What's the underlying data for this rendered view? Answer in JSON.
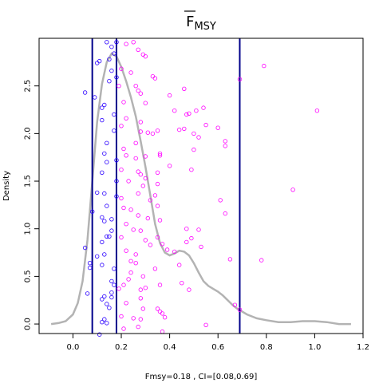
{
  "chart_data": {
    "type": "scatter",
    "title": "F",
    "title_subscript": "MSY",
    "title_overline": true,
    "xlabel": "Fmsy=0.18 , CI=[0.08,0.69]",
    "ylabel": "Density",
    "xlim": [
      -0.14,
      1.2
    ],
    "ylim": [
      -0.1,
      3.0
    ],
    "xticks": [
      0.0,
      0.2,
      0.4,
      0.6,
      0.8,
      1.0,
      1.2
    ],
    "xtick_labels": [
      "0.0",
      "0.2",
      "0.4",
      "0.6",
      "0.8",
      "1.0",
      "1.2"
    ],
    "yticks": [
      0.0,
      0.5,
      1.0,
      1.5,
      2.0,
      2.5
    ],
    "ytick_labels": [
      "0.0",
      "0.5",
      "1.0",
      "1.5",
      "2.0",
      "2.5"
    ],
    "grid": false,
    "colors": {
      "density": "#b3b3b3",
      "vlines": "#00008b",
      "low_points": "#2a00ff",
      "high_points": "#ff00ff"
    },
    "vlines": [
      0.08,
      0.18,
      0.69
    ],
    "density": {
      "x": [
        -0.09,
        -0.06,
        -0.03,
        0.0,
        0.02,
        0.04,
        0.06,
        0.08,
        0.1,
        0.12,
        0.14,
        0.16,
        0.18,
        0.2,
        0.22,
        0.24,
        0.26,
        0.28,
        0.3,
        0.32,
        0.34,
        0.36,
        0.38,
        0.4,
        0.42,
        0.44,
        0.46,
        0.48,
        0.5,
        0.52,
        0.54,
        0.56,
        0.58,
        0.6,
        0.62,
        0.64,
        0.66,
        0.68,
        0.7,
        0.72,
        0.74,
        0.76,
        0.8,
        0.85,
        0.9,
        0.95,
        1.0,
        1.05,
        1.1,
        1.15
      ],
      "y": [
        0.0,
        0.01,
        0.03,
        0.1,
        0.22,
        0.45,
        0.88,
        1.5,
        2.12,
        2.52,
        2.75,
        2.84,
        2.81,
        2.7,
        2.55,
        2.38,
        2.18,
        1.92,
        1.65,
        1.35,
        1.05,
        0.85,
        0.75,
        0.72,
        0.74,
        0.77,
        0.76,
        0.72,
        0.64,
        0.54,
        0.45,
        0.4,
        0.37,
        0.34,
        0.3,
        0.25,
        0.2,
        0.16,
        0.13,
        0.1,
        0.08,
        0.06,
        0.04,
        0.02,
        0.02,
        0.03,
        0.03,
        0.02,
        0.0,
        0.0
      ]
    },
    "series": [
      {
        "name": "",
        "points": [
          [
            0.05,
            2.43
          ],
          [
            0.1,
            2.74
          ],
          [
            0.11,
            2.76
          ],
          [
            0.09,
            2.38
          ],
          [
            0.12,
            2.27
          ],
          [
            0.13,
            2.3
          ],
          [
            0.12,
            2.14
          ],
          [
            0.14,
            1.9
          ],
          [
            0.13,
            1.79
          ],
          [
            0.14,
            1.7
          ],
          [
            0.12,
            1.59
          ],
          [
            0.1,
            1.38
          ],
          [
            0.13,
            1.37
          ],
          [
            0.14,
            1.24
          ],
          [
            0.12,
            1.12
          ],
          [
            0.13,
            1.08
          ],
          [
            0.14,
            0.92
          ],
          [
            0.15,
            0.92
          ],
          [
            0.12,
            0.86
          ],
          [
            0.1,
            0.71
          ],
          [
            0.13,
            0.73
          ],
          [
            0.12,
            0.62
          ],
          [
            0.07,
            0.64
          ],
          [
            0.07,
            0.59
          ],
          [
            0.05,
            0.8
          ],
          [
            0.08,
            1.18
          ],
          [
            0.06,
            0.32
          ],
          [
            0.12,
            0.26
          ],
          [
            0.13,
            0.29
          ],
          [
            0.14,
            0.21
          ],
          [
            0.15,
            0.17
          ],
          [
            0.13,
            0.05
          ],
          [
            0.12,
            0.02
          ],
          [
            0.14,
            0.01
          ],
          [
            0.11,
            -0.11
          ],
          [
            0.15,
            2.55
          ],
          [
            0.16,
            2.66
          ],
          [
            0.16,
            2.91
          ],
          [
            0.17,
            2.84
          ],
          [
            0.18,
            2.96
          ],
          [
            0.18,
            2.59
          ],
          [
            0.17,
            2.2
          ],
          [
            0.17,
            2.03
          ],
          [
            0.18,
            1.72
          ],
          [
            0.18,
            1.5
          ],
          [
            0.18,
            1.34
          ],
          [
            0.16,
            1.1
          ],
          [
            0.16,
            0.98
          ],
          [
            0.17,
            0.58
          ],
          [
            0.16,
            0.45
          ],
          [
            0.17,
            0.41
          ],
          [
            0.16,
            0.33
          ],
          [
            0.16,
            0.28
          ],
          [
            0.14,
            2.96
          ],
          [
            0.15,
            2.78
          ]
        ],
        "color": "#2a00ff"
      },
      {
        "name": "",
        "points": [
          [
            0.2,
            2.68
          ],
          [
            0.22,
            2.94
          ],
          [
            0.25,
            2.96
          ],
          [
            0.24,
            2.64
          ],
          [
            0.19,
            2.5
          ],
          [
            0.21,
            2.33
          ],
          [
            0.22,
            2.16
          ],
          [
            0.2,
            2.08
          ],
          [
            0.21,
            1.84
          ],
          [
            0.22,
            1.77
          ],
          [
            0.2,
            1.62
          ],
          [
            0.23,
            1.5
          ],
          [
            0.2,
            1.32
          ],
          [
            0.21,
            1.22
          ],
          [
            0.24,
            1.2
          ],
          [
            0.22,
            1.05
          ],
          [
            0.25,
            0.99
          ],
          [
            0.2,
            0.91
          ],
          [
            0.22,
            0.77
          ],
          [
            0.24,
            0.66
          ],
          [
            0.26,
            0.64
          ],
          [
            0.24,
            0.54
          ],
          [
            0.21,
            0.41
          ],
          [
            0.23,
            0.47
          ],
          [
            0.19,
            0.37
          ],
          [
            0.22,
            0.22
          ],
          [
            0.2,
            0.08
          ],
          [
            0.25,
            0.06
          ],
          [
            0.21,
            -0.05
          ],
          [
            0.27,
            2.88
          ],
          [
            0.29,
            2.83
          ],
          [
            0.3,
            2.81
          ],
          [
            0.26,
            2.5
          ],
          [
            0.28,
            2.42
          ],
          [
            0.27,
            2.45
          ],
          [
            0.3,
            2.32
          ],
          [
            0.28,
            2.12
          ],
          [
            0.28,
            2.02
          ],
          [
            0.31,
            2.01
          ],
          [
            0.26,
            1.9
          ],
          [
            0.26,
            1.74
          ],
          [
            0.3,
            1.76
          ],
          [
            0.27,
            1.6
          ],
          [
            0.28,
            1.57
          ],
          [
            0.3,
            1.53
          ],
          [
            0.29,
            1.45
          ],
          [
            0.27,
            1.37
          ],
          [
            0.32,
            1.3
          ],
          [
            0.27,
            1.14
          ],
          [
            0.31,
            1.11
          ],
          [
            0.28,
            0.98
          ],
          [
            0.3,
            0.88
          ],
          [
            0.32,
            0.83
          ],
          [
            0.26,
            0.73
          ],
          [
            0.29,
            0.5
          ],
          [
            0.3,
            0.38
          ],
          [
            0.28,
            0.36
          ],
          [
            0.28,
            0.27
          ],
          [
            0.29,
            0.16
          ],
          [
            0.28,
            0.05
          ],
          [
            0.27,
            -0.03
          ],
          [
            0.33,
            2.6
          ],
          [
            0.34,
            2.58
          ],
          [
            0.33,
            2.0
          ],
          [
            0.35,
            2.03
          ],
          [
            0.36,
            1.79
          ],
          [
            0.36,
            1.77
          ],
          [
            0.35,
            1.59
          ],
          [
            0.35,
            1.47
          ],
          [
            0.34,
            1.35
          ],
          [
            0.35,
            1.24
          ],
          [
            0.36,
            1.09
          ],
          [
            0.35,
            0.91
          ],
          [
            0.37,
            0.84
          ],
          [
            0.34,
            0.58
          ],
          [
            0.36,
            0.41
          ],
          [
            0.35,
            0.16
          ],
          [
            0.36,
            0.13
          ],
          [
            0.37,
            0.11
          ],
          [
            0.38,
            0.07
          ],
          [
            0.37,
            -0.08
          ],
          [
            0.4,
            2.4
          ],
          [
            0.42,
            2.24
          ],
          [
            0.46,
            2.47
          ],
          [
            0.47,
            2.2
          ],
          [
            0.48,
            2.21
          ],
          [
            0.51,
            2.24
          ],
          [
            0.54,
            2.27
          ],
          [
            0.44,
            2.04
          ],
          [
            0.46,
            2.05
          ],
          [
            0.5,
            2.0
          ],
          [
            0.52,
            1.96
          ],
          [
            0.55,
            2.09
          ],
          [
            0.6,
            2.06
          ],
          [
            0.63,
            1.92
          ],
          [
            0.63,
            1.87
          ],
          [
            0.49,
            1.62
          ],
          [
            0.5,
            1.83
          ],
          [
            0.4,
            1.66
          ],
          [
            0.39,
            0.78
          ],
          [
            0.42,
            0.76
          ],
          [
            0.45,
            0.43
          ],
          [
            0.48,
            0.36
          ],
          [
            0.44,
            0.62
          ],
          [
            0.47,
            1.0
          ],
          [
            0.49,
            0.9
          ],
          [
            0.53,
            0.81
          ],
          [
            0.47,
            0.86
          ],
          [
            0.52,
            0.99
          ],
          [
            0.61,
            1.3
          ],
          [
            0.63,
            1.16
          ],
          [
            0.65,
            0.68
          ],
          [
            0.69,
            2.57
          ],
          [
            0.79,
            2.71
          ],
          [
            0.78,
            0.67
          ],
          [
            0.91,
            1.41
          ],
          [
            1.01,
            2.24
          ],
          [
            0.67,
            0.2
          ],
          [
            0.69,
            0.15
          ],
          [
            0.55,
            -0.01
          ]
        ],
        "color": "#ff00ff"
      }
    ]
  }
}
